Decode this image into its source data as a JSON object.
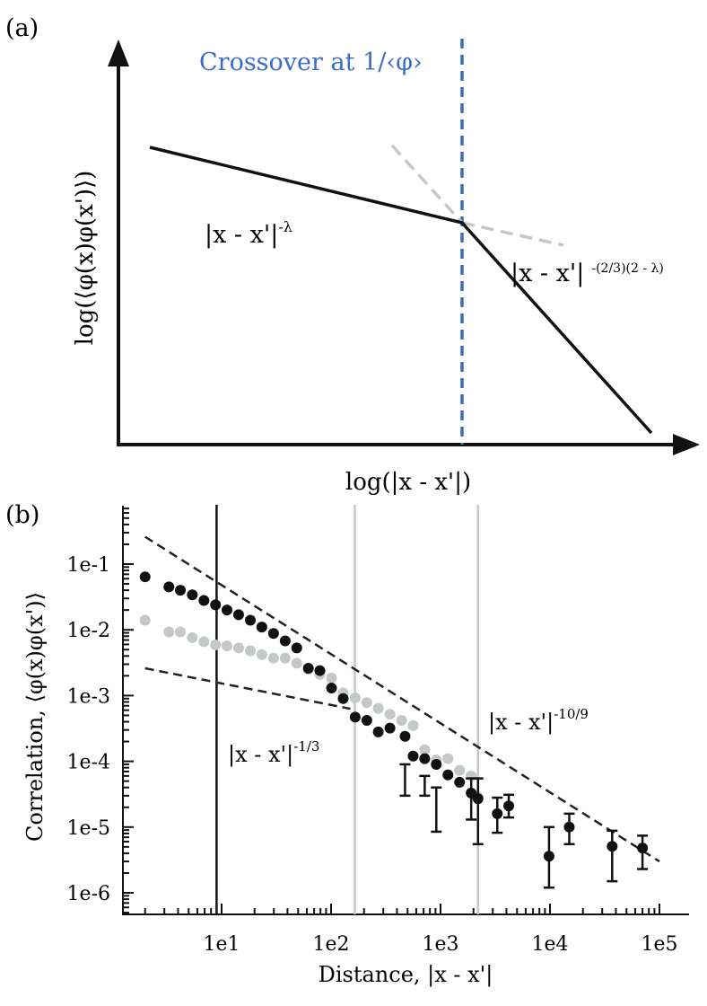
{
  "colors": {
    "black": "#111111",
    "grey": "#c4c8c6",
    "blue": "#3a6dc4",
    "dash": "#222222"
  },
  "panel_a": {
    "label": "(a)",
    "crossover_label": "Crossover at 1/‹φ›",
    "ylabel": "log(⟨φ(x)φ(x')⟩)",
    "xlabel": "log(|x - x'|)",
    "law_left_base": "|x - x'|",
    "law_left_exp": "-λ",
    "law_right_base": "|x - x'|",
    "law_right_exp": "-(2/3)(2 - λ)"
  },
  "chart_data": [
    {
      "type": "line",
      "panel": "a",
      "title": "",
      "xlabel": "log(|x - x'|)",
      "ylabel": "log(⟨φ(x)φ(x')⟩)",
      "axes": "arrows, no ticks",
      "crossover_x": 0.61,
      "series": [
        {
          "name": "correlation (solid)",
          "x": [
            0.06,
            0.61,
            1.0
          ],
          "y": [
            0.93,
            0.74,
            0.03
          ]
        },
        {
          "name": "extension of right law (dashed)",
          "x": [
            0.51,
            0.61
          ],
          "y": [
            0.93,
            0.74
          ]
        },
        {
          "name": "extension of left law (dashed)",
          "x": [
            0.61,
            0.8
          ],
          "y": [
            0.74,
            0.66
          ]
        }
      ]
    },
    {
      "type": "scatter",
      "panel": "b",
      "label": "(b)",
      "xlabel": "Distance, |x - x'|",
      "ylabel": "Correlation, ⟨φ(x)φ(x')⟩",
      "xscale": "log",
      "yscale": "log",
      "xlim": [
        1,
        150000
      ],
      "ylim": [
        4e-07,
        1
      ],
      "xticks": [
        "1e1",
        "1e2",
        "1e3",
        "1e4",
        "1e5"
      ],
      "yticks": [
        "1e-6",
        "1e-5",
        "1e-4",
        "1e-3",
        "1e-2",
        "1e-1"
      ],
      "vertical_lines": [
        {
          "x": 9,
          "color": "black"
        },
        {
          "x": 165,
          "color": "grey"
        },
        {
          "x": 2200,
          "color": "grey"
        }
      ],
      "reference_lines": [
        {
          "label_base": "|x - x'|",
          "label_exp": "-10/9",
          "x": [
            2,
            100000
          ],
          "y": [
            0.26,
            3e-06
          ]
        },
        {
          "label_base": "|x - x'|",
          "label_exp": "-1/3",
          "x": [
            2,
            150
          ],
          "y": [
            0.0026,
            0.00063
          ]
        }
      ],
      "series": [
        {
          "name": "black",
          "color": "black",
          "x": [
            2,
            3.3,
            4.2,
            5.4,
            6.9,
            8.8,
            11.2,
            14.3,
            18.3,
            23.3,
            29.8,
            38.1,
            48.6,
            62,
            79,
            101,
            129,
            166,
            212,
            270,
            345,
            474,
            562,
            717,
            915,
            1169,
            1492,
            1906,
            2200,
            3300,
            4200,
            9800,
            15000,
            37000,
            70000
          ],
          "y": [
            0.064,
            0.045,
            0.04,
            0.034,
            0.028,
            0.024,
            0.02,
            0.017,
            0.014,
            0.011,
            0.0088,
            0.0068,
            0.0053,
            0.0026,
            0.0024,
            0.0013,
            0.0009,
            0.00047,
            0.00042,
            0.00028,
            0.00032,
            0.00024,
            0.00012,
            0.00011,
            9e-05,
            6.2e-05,
            4.8e-05,
            3.3e-05,
            2.7e-05,
            1.6e-05,
            2.1e-05,
            3.6e-06,
            1e-05,
            5.1e-06,
            4.8e-06
          ],
          "error_x": [
            474,
            717,
            915,
            1906,
            2200,
            3300,
            4200,
            9800,
            15000,
            37000,
            70000
          ],
          "error_low": [
            3e-05,
            3e-05,
            8.5e-06,
            1.3e-05,
            5.5e-06,
            8.2e-06,
            1.4e-05,
            1.2e-06,
            5.5e-06,
            1.5e-06,
            2.3e-06
          ],
          "error_high": [
            9e-05,
            6e-05,
            4e-05,
            5.5e-05,
            5.5e-05,
            2.8e-05,
            3.1e-05,
            1e-05,
            1.6e-05,
            8.8e-06,
            7.4e-06
          ]
        },
        {
          "name": "grey",
          "color": "grey",
          "x": [
            2,
            3.3,
            4.2,
            5.4,
            6.9,
            8.8,
            11.2,
            14.3,
            18.3,
            23.3,
            29.8,
            38.1,
            48.6,
            62,
            79,
            101,
            129,
            166,
            212,
            270,
            345,
            441,
            562,
            717,
            915,
            1169,
            1492,
            1906,
            2200
          ],
          "y": [
            0.014,
            0.0093,
            0.0093,
            0.0076,
            0.0066,
            0.0059,
            0.0057,
            0.0053,
            0.0048,
            0.0042,
            0.0037,
            0.0037,
            0.0031,
            0.0025,
            0.0021,
            0.00185,
            0.0011,
            0.00092,
            0.00078,
            0.00064,
            0.00052,
            0.00042,
            0.00035,
            0.00015,
            0.000105,
            0.00011,
            7.3e-05,
            6e-05,
            2.9e-05
          ]
        }
      ]
    }
  ],
  "panel_b": {
    "label": "(b)",
    "xlabel": "Distance, |x - x'|",
    "ylabel": "Correlation, ⟨φ(x)φ(x')⟩",
    "law_big_base": "|x - x'|",
    "law_big_exp": "-10/9",
    "law_small_base": "|x - x'|",
    "law_small_exp": "-1/3"
  }
}
